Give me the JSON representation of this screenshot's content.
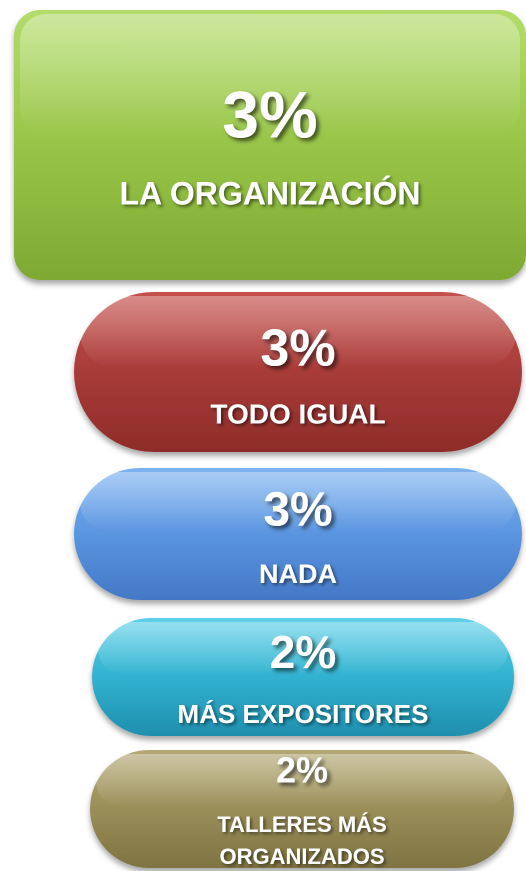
{
  "items": [
    {
      "percent": "3%",
      "label": [
        "LA ORGANIZACIÓN"
      ]
    },
    {
      "percent": "3%",
      "label": [
        "TODO IGUAL"
      ]
    },
    {
      "percent": "3%",
      "label": [
        "NADA"
      ]
    },
    {
      "percent": "2%",
      "label": [
        "MÁS EXPOSITORES"
      ]
    },
    {
      "percent": "2%",
      "label": [
        "TALLERES MÁS",
        "ORGANIZADOS"
      ]
    }
  ]
}
